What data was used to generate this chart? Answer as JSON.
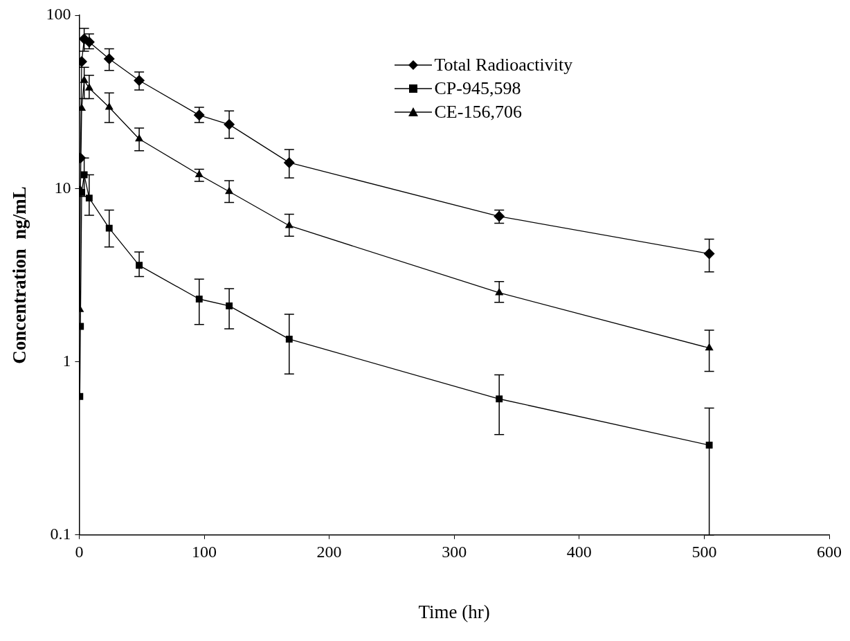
{
  "chart_data": {
    "type": "line",
    "xlabel": "Time (hr)",
    "ylabel": "Concentration  ng/mL",
    "log": "y",
    "grid": false,
    "legend": "top right",
    "line_style": "solid",
    "xlim": [
      0,
      600
    ],
    "xticks": [
      0,
      100,
      200,
      300,
      400,
      500,
      600
    ],
    "ylim": [
      0.1,
      100
    ],
    "yticks": [
      0.1,
      1,
      10,
      100
    ],
    "series": [
      {
        "name": "Total Radioactivity",
        "color": "#000000",
        "marker": "diamond",
        "x": [
          1,
          2,
          4,
          8,
          24,
          48,
          96,
          120,
          168,
          336,
          504
        ],
        "values": [
          15,
          54,
          73,
          70,
          56,
          42,
          26.5,
          23.4,
          14.1,
          6.9,
          4.2
        ],
        "errors": [
          null,
          null,
          [
            62,
            84
          ],
          [
            64,
            78
          ],
          [
            48,
            64
          ],
          [
            37,
            47
          ],
          [
            24,
            29.4
          ],
          [
            19.5,
            28
          ],
          [
            11.5,
            16.8
          ],
          [
            6.3,
            7.5
          ],
          [
            3.3,
            5.1
          ]
        ]
      },
      {
        "name": "CP-945,598",
        "color": "#000000",
        "marker": "square",
        "x": [
          0.5,
          1,
          2,
          4,
          8,
          24,
          48,
          96,
          120,
          168,
          336,
          504
        ],
        "values": [
          0.63,
          1.6,
          9.5,
          12,
          8.8,
          5.9,
          3.6,
          2.3,
          2.1,
          1.35,
          0.61,
          0.33
        ],
        "errors": [
          null,
          null,
          null,
          [
            9,
            15
          ],
          [
            7,
            12
          ],
          [
            4.6,
            7.5
          ],
          [
            3.1,
            4.3
          ],
          [
            1.64,
            3.0
          ],
          [
            1.55,
            2.64
          ],
          [
            0.85,
            1.88
          ],
          [
            0.38,
            0.84
          ],
          [
            0.1,
            0.54
          ]
        ]
      },
      {
        "name": "CE-156,706",
        "color": "#000000",
        "marker": "triangle",
        "x": [
          0.5,
          1,
          2,
          4,
          8,
          24,
          48,
          96,
          120,
          168,
          336,
          504
        ],
        "values": [
          2.0,
          9.8,
          29,
          42,
          38,
          29.4,
          19.3,
          12,
          9.6,
          6.1,
          2.5,
          1.2
        ],
        "errors": [
          null,
          null,
          null,
          [
            33,
            50
          ],
          [
            33,
            45
          ],
          [
            24,
            35.6
          ],
          [
            16.5,
            22.3
          ],
          [
            11,
            12.9
          ],
          [
            8.3,
            11.1
          ],
          [
            5.3,
            7.1
          ],
          [
            2.2,
            2.9
          ],
          [
            0.88,
            1.52
          ]
        ]
      }
    ]
  }
}
